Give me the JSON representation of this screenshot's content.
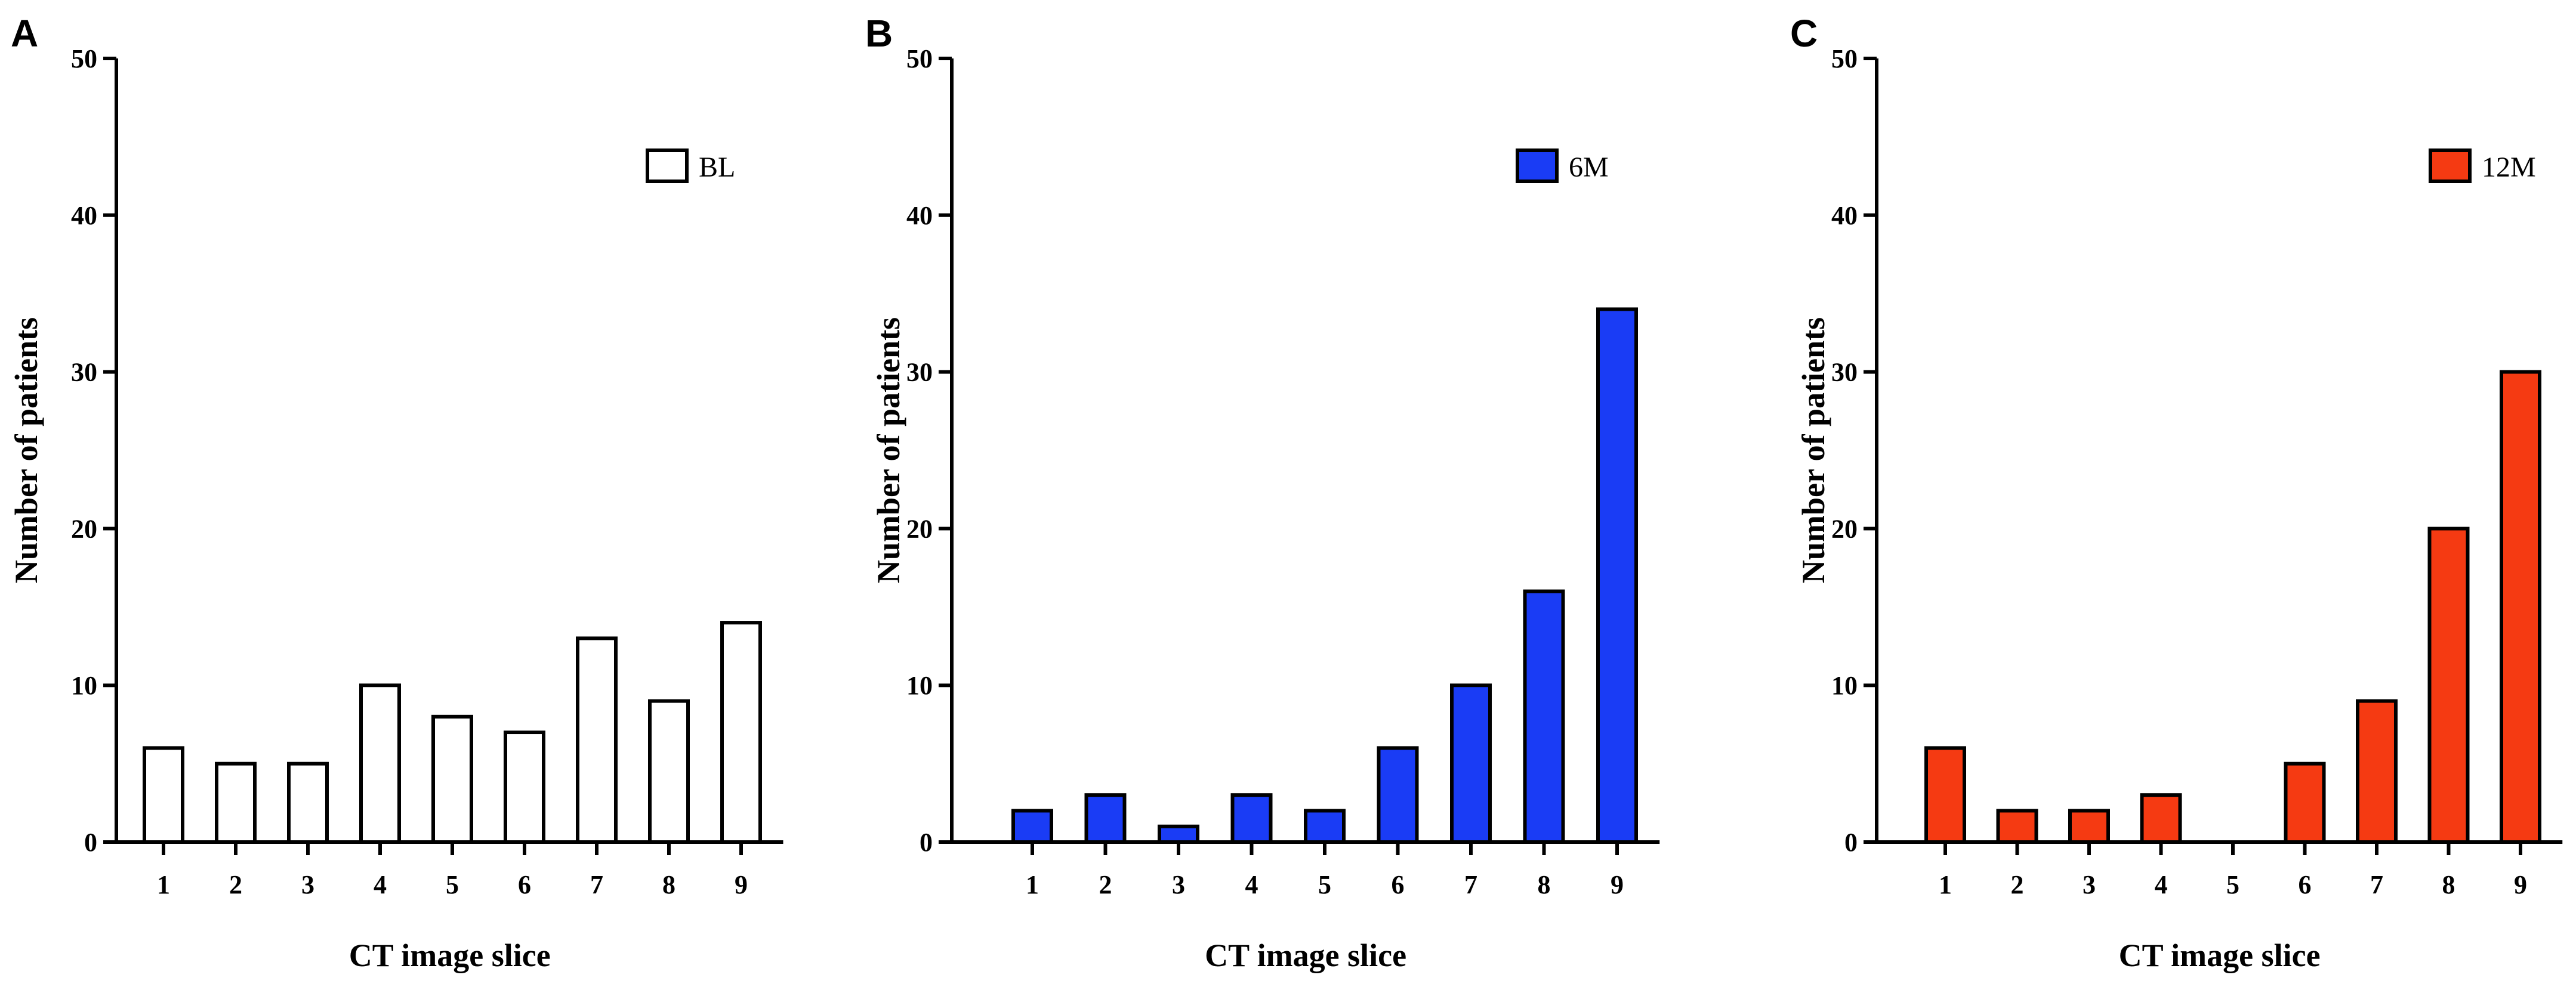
{
  "panels": [
    {
      "letter": "A",
      "legend_label": "BL",
      "fill_color": "#ffffff",
      "chart_data": {
        "type": "bar",
        "categories": [
          "1",
          "2",
          "3",
          "4",
          "5",
          "6",
          "7",
          "8",
          "9"
        ],
        "series": [
          {
            "name": "BL",
            "values": [
              6,
              5,
              5,
              10,
              8,
              7,
              13,
              9,
              14
            ]
          }
        ],
        "xlabel": "CT image slice",
        "ylabel": "Number of patients",
        "ylim": [
          0,
          50
        ],
        "yticks": [
          0,
          10,
          20,
          30,
          40,
          50
        ],
        "grid": false,
        "legend_position": "top-right"
      }
    },
    {
      "letter": "B",
      "legend_label": "6M",
      "fill_color": "#1a3cf5",
      "chart_data": {
        "type": "bar",
        "categories": [
          "1",
          "2",
          "3",
          "4",
          "5",
          "6",
          "7",
          "8",
          "9"
        ],
        "series": [
          {
            "name": "6M",
            "values": [
              2,
              3,
              1,
              3,
              2,
              6,
              10,
              16,
              34
            ]
          }
        ],
        "xlabel": "CT image slice",
        "ylabel": "Number of patients",
        "ylim": [
          0,
          50
        ],
        "yticks": [
          0,
          10,
          20,
          30,
          40,
          50
        ],
        "grid": false,
        "legend_position": "top-right"
      }
    },
    {
      "letter": "C",
      "legend_label": "12M",
      "fill_color": "#f53a12",
      "chart_data": {
        "type": "bar",
        "categories": [
          "1",
          "2",
          "3",
          "4",
          "5",
          "6",
          "7",
          "8",
          "9"
        ],
        "series": [
          {
            "name": "12M",
            "values": [
              6,
              2,
              2,
              3,
              0,
              5,
              9,
              20,
              30
            ]
          }
        ],
        "xlabel": "CT image slice",
        "ylabel": "Number of patients",
        "ylim": [
          0,
          50
        ],
        "yticks": [
          0,
          10,
          20,
          30,
          40,
          50
        ],
        "grid": false,
        "legend_position": "top-right"
      }
    }
  ]
}
